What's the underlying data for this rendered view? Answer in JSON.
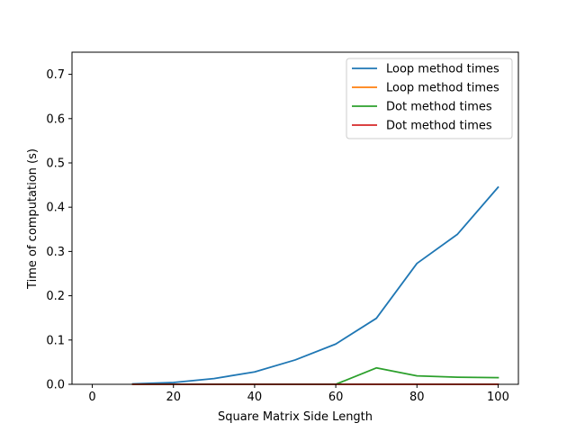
{
  "chart_data": {
    "type": "line",
    "title": "",
    "xlabel": "Square Matrix Side Length",
    "ylabel": "Time of computation (s)",
    "xlim": [
      -5,
      105
    ],
    "ylim": [
      0,
      0.75
    ],
    "xticks": [
      0,
      20,
      40,
      60,
      80,
      100
    ],
    "yticks": [
      0.0,
      0.1,
      0.2,
      0.3,
      0.4,
      0.5,
      0.6,
      0.7
    ],
    "xtick_labels": [
      "0",
      "20",
      "40",
      "60",
      "80",
      "100"
    ],
    "ytick_labels": [
      "0.0",
      "0.1",
      "0.2",
      "0.3",
      "0.4",
      "0.5",
      "0.6",
      "0.7"
    ],
    "grid": false,
    "legend_position": "top-right",
    "x": [
      10,
      20,
      30,
      40,
      50,
      60,
      70,
      80,
      90,
      100
    ],
    "series": [
      {
        "name": "Loop method times",
        "color": "#1f77b4",
        "values": [
          0.001,
          0.004,
          0.013,
          0.028,
          0.055,
          0.091,
          0.149,
          0.273,
          0.339,
          0.445
        ]
      },
      {
        "name": "Loop method times",
        "color": "#ff7f0e",
        "values": [
          0,
          0,
          0,
          0,
          0,
          0,
          0,
          0,
          0,
          0
        ]
      },
      {
        "name": "Dot method times",
        "color": "#2ca02c",
        "values": [
          0.0,
          0.0,
          0.0,
          0.0,
          0.0,
          0.0,
          0.037,
          0.019,
          0.016,
          0.015
        ]
      },
      {
        "name": "Dot method times",
        "color": "#d62728",
        "values": [
          0,
          0,
          0,
          0,
          0,
          0,
          0,
          0,
          0,
          0
        ]
      }
    ]
  }
}
